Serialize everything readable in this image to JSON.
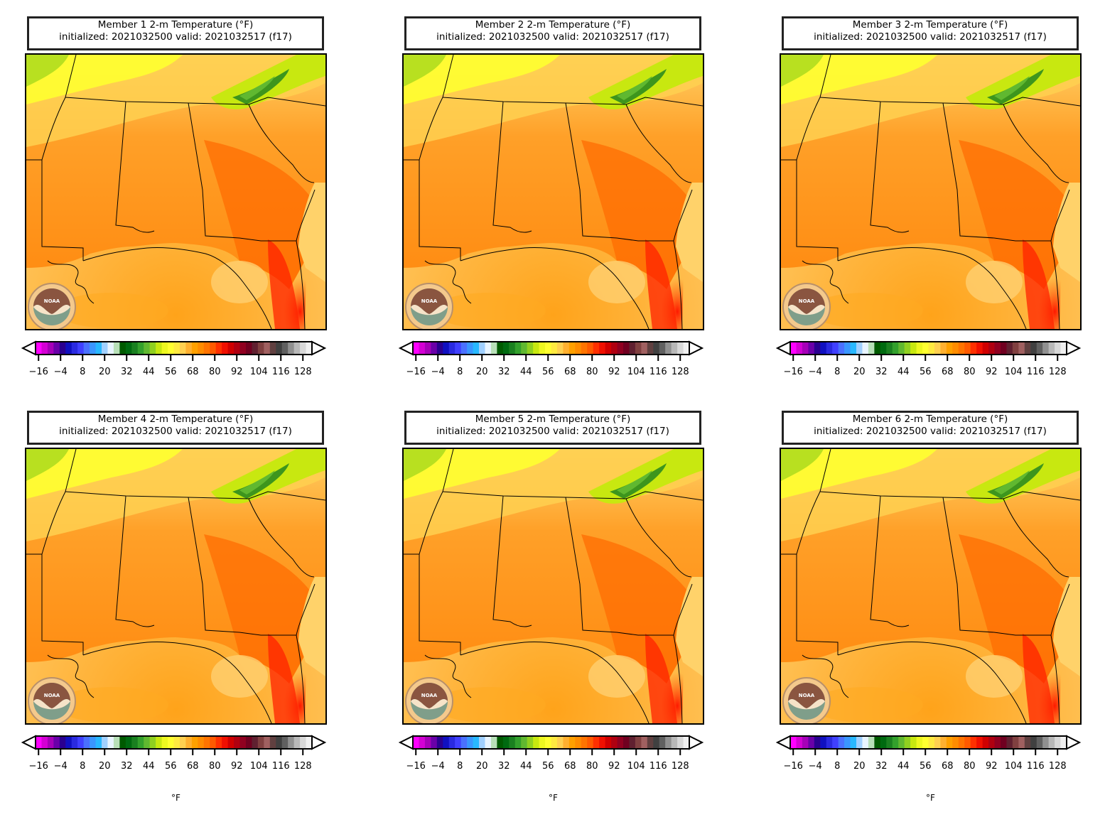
{
  "panels": [
    {
      "title_line1": "Member 1 2-m Temperature (°F)",
      "title_line2": "initialized: 2021032500 valid: 2021032517 (f17)"
    },
    {
      "title_line1": "Member 2 2-m Temperature (°F)",
      "title_line2": "initialized: 2021032500 valid: 2021032517 (f17)"
    },
    {
      "title_line1": "Member 3 2-m Temperature (°F)",
      "title_line2": "initialized: 2021032500 valid: 2021032517 (f17)"
    },
    {
      "title_line1": "Member 4 2-m Temperature (°F)",
      "title_line2": "initialized: 2021032500 valid: 2021032517 (f17)",
      "unit": "°F"
    },
    {
      "title_line1": "Member 5 2-m Temperature (°F)",
      "title_line2": "initialized: 2021032500 valid: 2021032517 (f17)",
      "unit": "°F"
    },
    {
      "title_line1": "Member 6 2-m Temperature (°F)",
      "title_line2": "initialized: 2021032500 valid: 2021032517 (f17)",
      "unit": "°F"
    }
  ],
  "colorbar": {
    "ticks": [
      "−16",
      "−4",
      "8",
      "20",
      "32",
      "44",
      "56",
      "68",
      "80",
      "92",
      "104",
      "116",
      "128"
    ],
    "colors": [
      "#ff00ff",
      "#d400d4",
      "#a600b8",
      "#6a00a8",
      "#2a0090",
      "#1010c0",
      "#2a2ae0",
      "#4040ff",
      "#4a70ff",
      "#3a96ff",
      "#28b8ff",
      "#a0d0ff",
      "#e8f4ff",
      "#b8e0b8",
      "#005a00",
      "#006a10",
      "#1a8020",
      "#33a02c",
      "#60b830",
      "#90d020",
      "#c8e810",
      "#eef820",
      "#ffff30",
      "#ffea40",
      "#ffd050",
      "#ffb030",
      "#ffa000",
      "#ff8c00",
      "#ff7400",
      "#ff5a00",
      "#ff3000",
      "#f01000",
      "#d00000",
      "#b00010",
      "#900020",
      "#700020",
      "#602030",
      "#804040",
      "#a06060",
      "#604040",
      "#404040",
      "#606060",
      "#909090",
      "#b8b8b8",
      "#d8d8d8",
      "#f0f0f0"
    ]
  },
  "logo": {
    "text": "NOAA"
  }
}
